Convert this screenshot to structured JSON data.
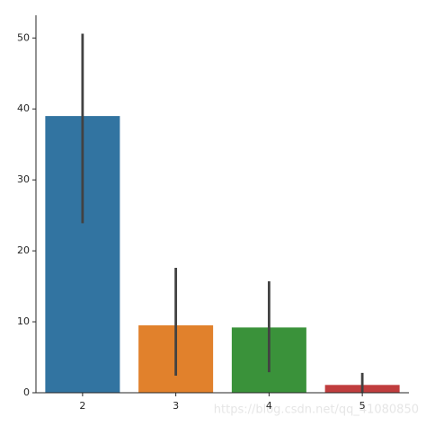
{
  "chart_data": {
    "type": "bar",
    "categories": [
      "2",
      "3",
      "4",
      "5"
    ],
    "values": [
      39.0,
      9.5,
      9.2,
      1.1
    ],
    "ci_low": [
      23.9,
      2.4,
      2.9,
      0.0
    ],
    "ci_high": [
      50.6,
      17.6,
      15.7,
      2.8
    ],
    "colors": [
      "#3274a1",
      "#e1812c",
      "#3a923a",
      "#c03d3e"
    ],
    "error_color": "#424242",
    "ylim": [
      0,
      53.2
    ],
    "yticks": [
      0,
      10,
      20,
      30,
      40,
      50
    ],
    "grid": false
  },
  "watermark": "https://blog.csdn.net/qq_41080850"
}
